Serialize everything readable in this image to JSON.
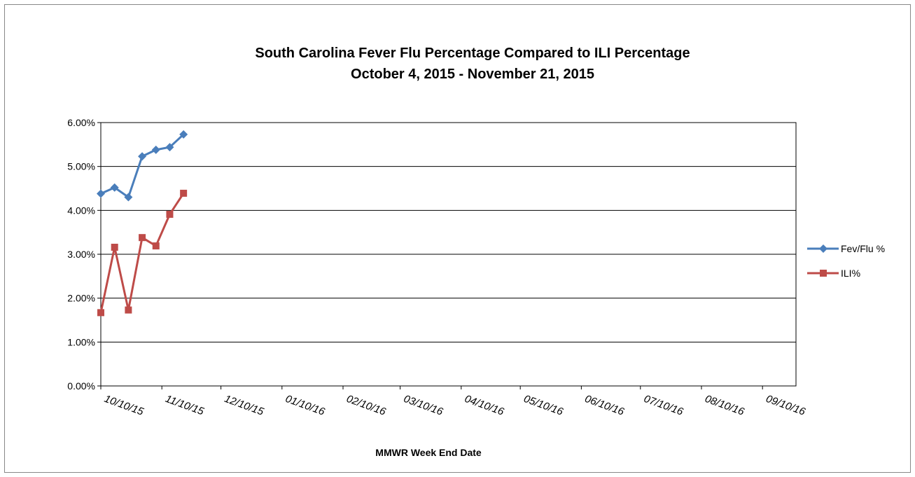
{
  "chart_data": {
    "type": "line",
    "title": "South Carolina Fever Flu Percentage Compared to ILI Percentage",
    "subtitle": "October 4, 2015 - November 21, 2015",
    "x_label": "MMWR Week End Date",
    "x": [
      "2015-10-10",
      "2015-10-17",
      "2015-10-24",
      "2015-10-31",
      "2015-11-07",
      "2015-11-14",
      "2015-11-21"
    ],
    "series": [
      {
        "name": "Fev/Flu %",
        "color": "#4a7ebb",
        "marker": "diamond",
        "values": [
          4.38,
          4.52,
          4.3,
          5.23,
          5.38,
          5.44,
          5.73
        ]
      },
      {
        "name": "ILI%",
        "color": "#be4b48",
        "marker": "square",
        "values": [
          1.67,
          3.16,
          1.73,
          3.38,
          3.19,
          3.91,
          4.39
        ]
      }
    ],
    "xlim": [
      "2015-10-10",
      "2016-09-27"
    ],
    "xticks": [
      {
        "value": "2015-10-10",
        "label": "10/10/15"
      },
      {
        "value": "2015-11-10",
        "label": "11/10/15"
      },
      {
        "value": "2015-12-10",
        "label": "12/10/15"
      },
      {
        "value": "2016-01-10",
        "label": "01/10/16"
      },
      {
        "value": "2016-02-10",
        "label": "02/10/16"
      },
      {
        "value": "2016-03-10",
        "label": "03/10/16"
      },
      {
        "value": "2016-04-10",
        "label": "04/10/16"
      },
      {
        "value": "2016-05-10",
        "label": "05/10/16"
      },
      {
        "value": "2016-06-10",
        "label": "06/10/16"
      },
      {
        "value": "2016-07-10",
        "label": "07/10/16"
      },
      {
        "value": "2016-08-10",
        "label": "08/10/16"
      },
      {
        "value": "2016-09-10",
        "label": "09/10/16"
      }
    ],
    "ylim": [
      0,
      6
    ],
    "yticks": [
      {
        "value": 0,
        "label": "0.00%"
      },
      {
        "value": 1,
        "label": "1.00%"
      },
      {
        "value": 2,
        "label": "2.00%"
      },
      {
        "value": 3,
        "label": "3.00%"
      },
      {
        "value": 4,
        "label": "4.00%"
      },
      {
        "value": 5,
        "label": "5.00%"
      },
      {
        "value": 6,
        "label": "6.00%"
      }
    ],
    "grid": true,
    "legend": "right"
  }
}
